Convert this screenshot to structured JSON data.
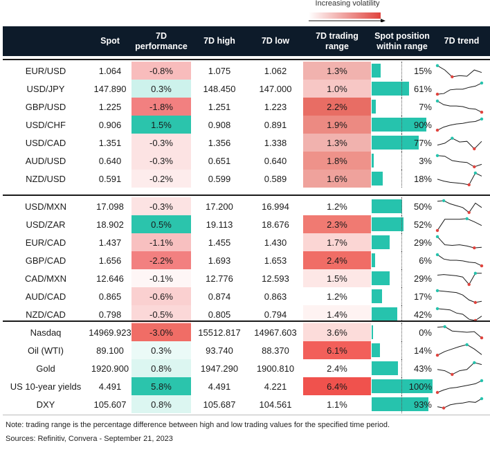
{
  "legend": {
    "label": "Increasing volatility"
  },
  "headers": {
    "spot": "Spot",
    "perf": "7D performance",
    "high": "7D high",
    "low": "7D low",
    "range": "7D trading range",
    "position": "Spot position within range",
    "trend": "7D trend"
  },
  "colors": {
    "header_bg": "#0d1b2a",
    "position_bar": "#26c3ad",
    "trend_line": "#1a1a1a",
    "trend_high_dot": "#26c3ad",
    "trend_low_dot": "#e0443e"
  },
  "chart_data": {
    "type": "table",
    "groups": [
      {
        "rows": [
          {
            "label": "EUR/USD",
            "spot": "1.064",
            "perf": "-0.8%",
            "high": "1.075",
            "low": "1.062",
            "range": "1.3%",
            "position": "15%",
            "position_value": 15,
            "perf_bg": "#f8bcbc",
            "range_bg": "#f1b2ae",
            "trend": [
              0.9,
              0.55,
              0.0,
              0.1,
              0.05,
              0.55,
              0.35
            ],
            "trend_hi": 0,
            "trend_lo": 2
          },
          {
            "label": "USD/JPY",
            "spot": "147.890",
            "perf": "0.3%",
            "high": "148.450",
            "low": "147.000",
            "range": "1.0%",
            "position": "61%",
            "position_value": 61,
            "perf_bg": "#cdf2ec",
            "range_bg": "#f7c7c5",
            "trend": [
              0.05,
              0.1,
              0.4,
              0.45,
              0.45,
              0.6,
              0.7,
              0.95
            ],
            "trend_hi": 7,
            "trend_lo": 0
          },
          {
            "label": "GBP/USD",
            "spot": "1.225",
            "perf": "-1.8%",
            "high": "1.251",
            "low": "1.223",
            "range": "2.2%",
            "position": "7%",
            "position_value": 7,
            "perf_bg": "#f28080",
            "range_bg": "#e86d64",
            "trend": [
              0.95,
              0.65,
              0.55,
              0.55,
              0.5,
              0.35,
              0.3,
              0.05
            ],
            "trend_hi": 0,
            "trend_lo": 7
          },
          {
            "label": "USD/CHF",
            "spot": "0.906",
            "perf": "1.5%",
            "high": "0.908",
            "low": "0.891",
            "range": "1.9%",
            "position": "90%",
            "position_value": 90,
            "perf_bg": "#2bc4ac",
            "range_bg": "#ec8a82",
            "trend": [
              0.05,
              0.3,
              0.45,
              0.55,
              0.6,
              0.7,
              0.75,
              0.95
            ],
            "trend_hi": 7,
            "trend_lo": 0
          },
          {
            "label": "USD/CAD",
            "spot": "1.351",
            "perf": "-0.3%",
            "high": "1.356",
            "low": "1.338",
            "range": "1.3%",
            "position": "77%",
            "position_value": 77,
            "perf_bg": "#fce3e3",
            "range_bg": "#f1b2ae",
            "trend": [
              0.3,
              0.45,
              0.85,
              0.55,
              0.6,
              0.0,
              0.6
            ],
            "trend_hi": 2,
            "trend_lo": 5
          },
          {
            "label": "AUD/USD",
            "spot": "0.640",
            "perf": "-0.3%",
            "high": "0.651",
            "low": "0.640",
            "range": "1.8%",
            "position": "3%",
            "position_value": 3,
            "perf_bg": "#fce3e3",
            "range_bg": "#ee928a",
            "trend": [
              0.9,
              0.85,
              0.5,
              0.4,
              0.35,
              0.0,
              0.2
            ],
            "trend_hi": 0,
            "trend_lo": 5
          },
          {
            "label": "NZD/USD",
            "spot": "0.591",
            "perf": "-0.2%",
            "high": "0.599",
            "low": "0.589",
            "range": "1.6%",
            "position": "18%",
            "position_value": 18,
            "perf_bg": "#fdecec",
            "range_bg": "#efa29c",
            "trend": [
              0.45,
              0.3,
              0.2,
              0.15,
              0.1,
              0.0,
              0.95,
              0.7
            ],
            "trend_hi": 6,
            "trend_lo": 5
          }
        ]
      },
      {
        "rows": [
          {
            "label": "USD/MXN",
            "spot": "17.098",
            "perf": "-0.3%",
            "high": "17.200",
            "low": "16.994",
            "range": "1.2%",
            "position": "50%",
            "position_value": 50,
            "perf_bg": "#fce3e3",
            "range_bg": "#ffffff",
            "trend": [
              0.9,
              0.95,
              0.7,
              0.55,
              0.4,
              0.0,
              0.75,
              0.4
            ],
            "trend_hi": 1,
            "trend_lo": 5
          },
          {
            "label": "USD/ZAR",
            "spot": "18.902",
            "perf": "0.5%",
            "high": "19.113",
            "low": "18.676",
            "range": "2.3%",
            "position": "52%",
            "position_value": 52,
            "perf_bg": "#2bc4ac",
            "range_bg": "#f07a72",
            "trend": [
              0.0,
              0.9,
              0.9,
              0.9,
              0.95,
              0.7,
              0.4
            ],
            "trend_hi": 4,
            "trend_lo": 0
          },
          {
            "label": "EUR/CAD",
            "spot": "1.437",
            "perf": "-1.1%",
            "high": "1.455",
            "low": "1.430",
            "range": "1.7%",
            "position": "29%",
            "position_value": 29,
            "perf_bg": "#f8c0c0",
            "range_bg": "#fbd6d4",
            "trend": [
              0.95,
              0.3,
              0.25,
              0.3,
              0.2,
              0.05,
              0.1
            ],
            "trend_hi": 0,
            "trend_lo": 5
          },
          {
            "label": "GBP/CAD",
            "spot": "1.656",
            "perf": "-2.2%",
            "high": "1.693",
            "low": "1.653",
            "range": "2.4%",
            "position": "6%",
            "position_value": 6,
            "perf_bg": "#f28080",
            "range_bg": "#f06d66",
            "trend": [
              0.95,
              0.6,
              0.5,
              0.5,
              0.45,
              0.35,
              0.3,
              0.05
            ],
            "trend_hi": 0,
            "trend_lo": 7
          },
          {
            "label": "CAD/MXN",
            "spot": "12.646",
            "perf": "-0.1%",
            "high": "12.776",
            "low": "12.593",
            "range": "1.5%",
            "position": "29%",
            "position_value": 29,
            "perf_bg": "#fef6f6",
            "range_bg": "#fde7e6",
            "trend": [
              0.75,
              0.8,
              0.75,
              0.7,
              0.6,
              0.0,
              0.9,
              0.9
            ],
            "trend_hi": 6,
            "trend_lo": 5
          },
          {
            "label": "AUD/CAD",
            "spot": "0.865",
            "perf": "-0.6%",
            "high": "0.874",
            "low": "0.863",
            "range": "1.2%",
            "position": "17%",
            "position_value": 17,
            "perf_bg": "#fad0d0",
            "range_bg": "#ffffff",
            "trend": [
              0.95,
              0.9,
              0.85,
              0.8,
              0.6,
              0.2,
              0.0,
              0.1
            ],
            "trend_hi": 0,
            "trend_lo": 6
          },
          {
            "label": "NZD/CAD",
            "spot": "0.798",
            "perf": "-0.5%",
            "high": "0.805",
            "low": "0.794",
            "range": "1.4%",
            "position": "42%",
            "position_value": 42,
            "perf_bg": "#fbd8d8",
            "range_bg": "#fef3f2",
            "trend": [
              0.95,
              0.9,
              0.85,
              0.6,
              0.5,
              0.1,
              0.0,
              0.35
            ],
            "trend_hi": 0,
            "trend_lo": 6
          }
        ]
      },
      {
        "rows": [
          {
            "label": "Nasdaq",
            "spot": "14969.923",
            "perf": "-3.0%",
            "high": "15512.817",
            "low": "14967.603",
            "range": "3.6%",
            "position": "0%",
            "position_value": 0,
            "perf_bg": "#f06d66",
            "range_bg": "#fcdcda",
            "trend": [
              0.9,
              0.95,
              0.6,
              0.55,
              0.5,
              0.55,
              0.05
            ],
            "trend_hi": 1,
            "trend_lo": 6
          },
          {
            "label": "Oil (WTI)",
            "spot": "89.100",
            "perf": "0.3%",
            "high": "93.740",
            "low": "88.370",
            "range": "6.1%",
            "position": "14%",
            "position_value": 14,
            "perf_bg": "#ebfaf7",
            "range_bg": "#f25f5a",
            "trend": [
              0.1,
              0.4,
              0.6,
              0.8,
              0.95,
              0.6,
              0.15
            ],
            "trend_hi": 4,
            "trend_lo": 0
          },
          {
            "label": "Gold",
            "spot": "1920.900",
            "perf": "0.8%",
            "high": "1947.290",
            "low": "1900.810",
            "range": "2.4%",
            "position": "43%",
            "position_value": 43,
            "perf_bg": "#dcf6f1",
            "range_bg": "#ffffff",
            "trend": [
              0.4,
              0.3,
              0.0,
              0.3,
              0.4,
              0.95,
              0.8
            ],
            "trend_hi": 5,
            "trend_lo": 2
          },
          {
            "label": "US 10-year yields",
            "spot": "4.491",
            "perf": "5.8%",
            "high": "4.491",
            "low": "4.221",
            "range": "6.4%",
            "position": "100%",
            "position_value": 100,
            "perf_bg": "#2bc4ac",
            "range_bg": "#f0524d",
            "trend": [
              0.0,
              0.2,
              0.35,
              0.4,
              0.5,
              0.6,
              0.7,
              0.95
            ],
            "trend_hi": 7,
            "trend_lo": 0
          },
          {
            "label": "DXY",
            "spot": "105.607",
            "perf": "0.8%",
            "high": "105.687",
            "low": "104.561",
            "range": "1.1%",
            "position": "93%",
            "position_value": 93,
            "perf_bg": "#dcf6f1",
            "range_bg": "#ffffff",
            "trend": [
              0.3,
              0.2,
              0.45,
              0.55,
              0.6,
              0.7,
              0.65,
              0.95
            ],
            "trend_hi": 7,
            "trend_lo": 1
          }
        ]
      }
    ]
  },
  "notes": {
    "note": "Note: trading range is the percentage difference between high and low trading values for the specified time period.",
    "sources": "Sources: Refinitiv, Convera - September 21, 2023"
  }
}
